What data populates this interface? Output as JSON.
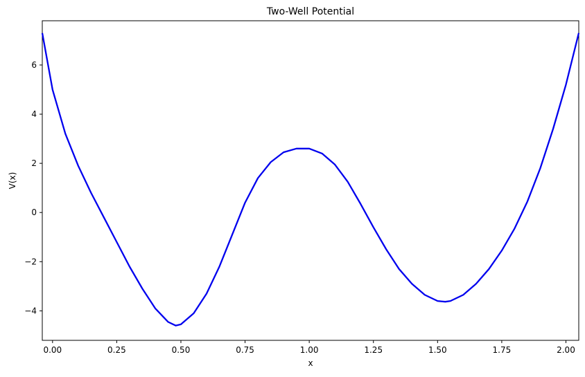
{
  "chart_data": {
    "type": "line",
    "title": "Two-Well Potential",
    "xlabel": "x",
    "ylabel": "V(x)",
    "xlim": [
      -0.04,
      2.05
    ],
    "ylim": [
      -5.2,
      7.8
    ],
    "grid": false,
    "legend": "none",
    "x_ticks": [
      {
        "value": 0.0,
        "label": "0.00"
      },
      {
        "value": 0.25,
        "label": "0.25"
      },
      {
        "value": 0.5,
        "label": "0.50"
      },
      {
        "value": 0.75,
        "label": "0.75"
      },
      {
        "value": 1.0,
        "label": "1.00"
      },
      {
        "value": 1.25,
        "label": "1.25"
      },
      {
        "value": 1.5,
        "label": "1.50"
      },
      {
        "value": 1.75,
        "label": "1.75"
      },
      {
        "value": 2.0,
        "label": "2.00"
      }
    ],
    "y_ticks": [
      {
        "value": -4,
        "label": "−4"
      },
      {
        "value": -2,
        "label": "−2"
      },
      {
        "value": 0,
        "label": "0"
      },
      {
        "value": 2,
        "label": "2"
      },
      {
        "value": 4,
        "label": "4"
      },
      {
        "value": 6,
        "label": "6"
      }
    ],
    "series": [
      {
        "color": "#0000ee",
        "x": [
          -0.04,
          0.0,
          0.05,
          0.1,
          0.15,
          0.2,
          0.25,
          0.3,
          0.35,
          0.4,
          0.45,
          0.48,
          0.5,
          0.55,
          0.6,
          0.65,
          0.7,
          0.75,
          0.8,
          0.85,
          0.9,
          0.95,
          1.0,
          1.05,
          1.1,
          1.15,
          1.2,
          1.25,
          1.3,
          1.35,
          1.4,
          1.45,
          1.5,
          1.53,
          1.55,
          1.6,
          1.65,
          1.7,
          1.75,
          1.8,
          1.85,
          1.9,
          1.95,
          2.0,
          2.05
        ],
        "y": [
          7.3,
          5.0,
          3.2,
          1.9,
          0.8,
          -0.2,
          -1.2,
          -2.2,
          -3.1,
          -3.9,
          -4.45,
          -4.6,
          -4.55,
          -4.1,
          -3.3,
          -2.2,
          -0.9,
          0.4,
          1.4,
          2.05,
          2.45,
          2.6,
          2.6,
          2.4,
          1.95,
          1.25,
          0.35,
          -0.6,
          -1.5,
          -2.3,
          -2.9,
          -3.35,
          -3.6,
          -3.63,
          -3.6,
          -3.35,
          -2.9,
          -2.3,
          -1.55,
          -0.65,
          0.45,
          1.8,
          3.4,
          5.2,
          7.3
        ]
      }
    ]
  }
}
